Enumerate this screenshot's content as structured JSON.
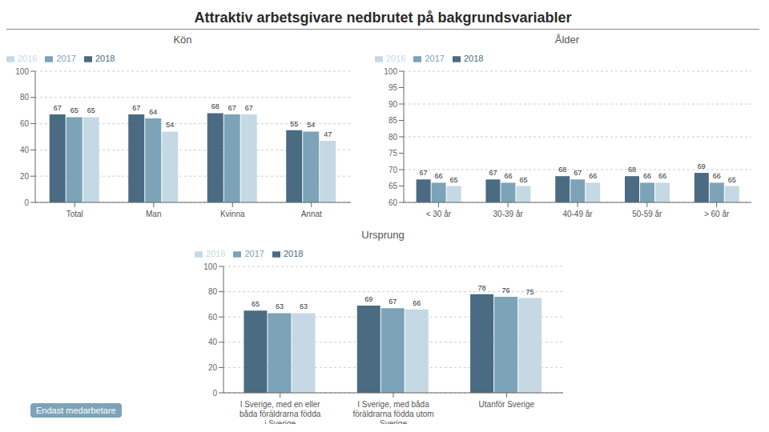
{
  "title": "Attraktiv arbetsgivare nedbrutet på bakgrundsvariabler",
  "annotations": [
    "Endast medarbetare"
  ],
  "chart_data": [
    {
      "type": "bar",
      "subtitle": "Kön",
      "categories": [
        "Total",
        "Man",
        "Kvinna",
        "Annat"
      ],
      "series": [
        {
          "name": "2018",
          "color": "#4a6b82",
          "values": [
            67,
            67,
            68,
            55
          ]
        },
        {
          "name": "2017",
          "color": "#7ca3b8",
          "values": [
            65,
            64,
            67,
            54
          ]
        },
        {
          "name": "2016",
          "color": "#c5d9e4",
          "values": [
            65,
            54,
            67,
            47
          ]
        }
      ],
      "ylim": [
        0,
        100
      ],
      "yticks": [
        0,
        20,
        40,
        60,
        80,
        100
      ],
      "grid": true,
      "legend": "upper left",
      "data_labels": true
    },
    {
      "type": "bar",
      "subtitle": "Ålder",
      "categories": [
        "< 30 år",
        "30-39 år",
        "40-49 år",
        "50-59 år",
        "> 60 år"
      ],
      "series": [
        {
          "name": "2018",
          "color": "#4a6b82",
          "values": [
            67,
            67,
            68,
            68,
            69
          ]
        },
        {
          "name": "2017",
          "color": "#7ca3b8",
          "values": [
            66,
            66,
            67,
            66,
            66
          ]
        },
        {
          "name": "2016",
          "color": "#c5d9e4",
          "values": [
            65,
            65,
            66,
            66,
            65
          ]
        }
      ],
      "ylim": [
        60,
        100
      ],
      "yticks": [
        60,
        65,
        70,
        75,
        80,
        85,
        90,
        95,
        100
      ],
      "grid": true,
      "legend": "upper left",
      "data_labels": true
    },
    {
      "type": "bar",
      "subtitle": "Ursprung",
      "categories": [
        "I Sverige, med en eller\nbåda föräldrarna födda\ni Sverige",
        "I Sverige, med båda\nföräldrarna födda utom\nSverige",
        "Utanför Sverige"
      ],
      "series": [
        {
          "name": "2018",
          "color": "#4a6b82",
          "values": [
            65,
            69,
            78
          ]
        },
        {
          "name": "2017",
          "color": "#7ca3b8",
          "values": [
            63,
            67,
            76
          ]
        },
        {
          "name": "2016",
          "color": "#c5d9e4",
          "values": [
            63,
            66,
            75
          ]
        }
      ],
      "ylim": [
        0,
        100
      ],
      "yticks": [
        0,
        20,
        40,
        60,
        80,
        100
      ],
      "grid": true,
      "legend": "upper left",
      "data_labels": true
    }
  ]
}
